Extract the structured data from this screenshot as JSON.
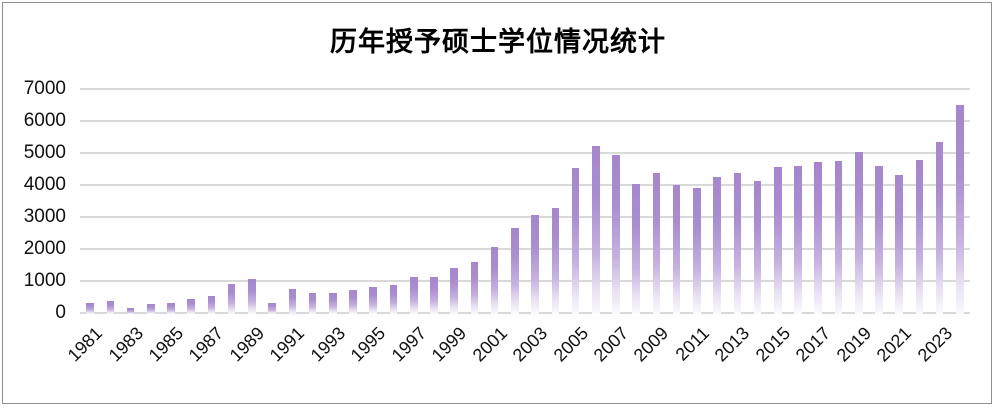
{
  "chart_data": {
    "type": "bar",
    "title": "历年授予硕士学位情况统计",
    "xlabel": "",
    "ylabel": "",
    "x": [
      1981,
      1982,
      1983,
      1984,
      1985,
      1986,
      1987,
      1988,
      1989,
      1990,
      1991,
      1992,
      1993,
      1994,
      1995,
      1996,
      1997,
      1998,
      1999,
      2000,
      2001,
      2002,
      2003,
      2004,
      2005,
      2006,
      2007,
      2008,
      2009,
      2010,
      2011,
      2012,
      2013,
      2014,
      2015,
      2016,
      2017,
      2018,
      2019,
      2020,
      2021,
      2022,
      2023,
      2024
    ],
    "values": [
      300,
      370,
      160,
      270,
      320,
      440,
      520,
      910,
      1070,
      300,
      750,
      620,
      630,
      730,
      810,
      880,
      1120,
      1130,
      1410,
      1580,
      2050,
      2650,
      3060,
      3270,
      4530,
      5210,
      4950,
      4040,
      4370,
      4010,
      3910,
      4250,
      4370,
      4130,
      4550,
      4600,
      4710,
      4750,
      5020,
      4600,
      4310,
      4770,
      5350,
      6500
    ],
    "ylim": [
      0,
      7000
    ],
    "yticks": [
      0,
      1000,
      2000,
      3000,
      4000,
      5000,
      6000,
      7000
    ],
    "ytick_labels": [
      "0",
      "1000",
      "2000",
      "3000",
      "4000",
      "5000",
      "6000",
      "7000"
    ],
    "xtick_labels": [
      "1981",
      "1983",
      "1985",
      "1987",
      "1989",
      "1991",
      "1993",
      "1995",
      "1997",
      "1999",
      "2001",
      "2003",
      "2005",
      "2007",
      "2009",
      "2011",
      "2013",
      "2015",
      "2017",
      "2019",
      "2021",
      "2023"
    ],
    "grid": true,
    "legend": false,
    "bar_fill": "gradient purple fading to white toward bar bottom"
  },
  "colors": {
    "bar_top": "#a686cc",
    "bar_solid": "#aa8ed0",
    "bar_mid": "#c6b2e0",
    "bar_light": "#e9e2f3",
    "bar_fade": "#fbfafd",
    "gridline": "#d9d9d9",
    "axis_text": "#111111",
    "title_text": "#000000",
    "border": "#8f8f8f",
    "background": "#ffffff"
  }
}
